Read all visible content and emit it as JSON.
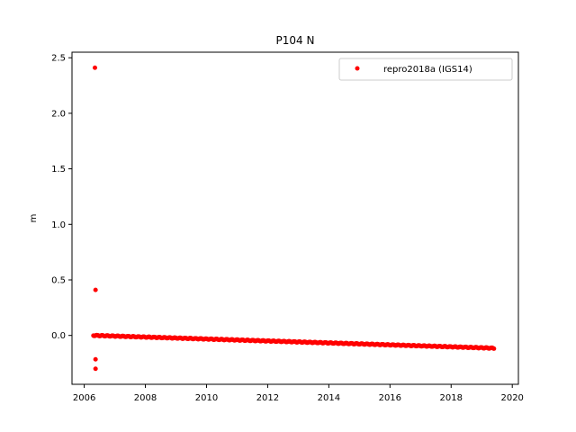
{
  "chart_data": {
    "type": "scatter",
    "title": "P104 N",
    "xlabel": "",
    "ylabel": "m",
    "xlim": [
      2005.6,
      2020.2
    ],
    "ylim": [
      -0.44,
      2.55
    ],
    "xticks": [
      2006,
      2008,
      2010,
      2012,
      2014,
      2016,
      2018,
      2020
    ],
    "xtick_labels": [
      "2006",
      "2008",
      "2010",
      "2012",
      "2014",
      "2016",
      "2018",
      "2020"
    ],
    "yticks": [
      0.0,
      0.5,
      1.0,
      1.5,
      2.0,
      2.5
    ],
    "ytick_labels": [
      "0.0",
      "0.5",
      "1.0",
      "1.5",
      "2.0",
      "2.5"
    ],
    "grid": false,
    "legend_position": "top-right",
    "series": [
      {
        "name": "repro2018a (IGS14)",
        "color": "#ff0000",
        "marker": "dot",
        "trend": {
          "x_start": 2006.3,
          "x_end": 2019.4,
          "y_start": 0.0,
          "y_end": -0.115
        },
        "outliers": [
          {
            "x": 2006.35,
            "y": 2.41
          },
          {
            "x": 2006.37,
            "y": 0.41
          },
          {
            "x": 2006.37,
            "y": -0.215
          },
          {
            "x": 2006.37,
            "y": -0.3
          }
        ]
      }
    ]
  }
}
